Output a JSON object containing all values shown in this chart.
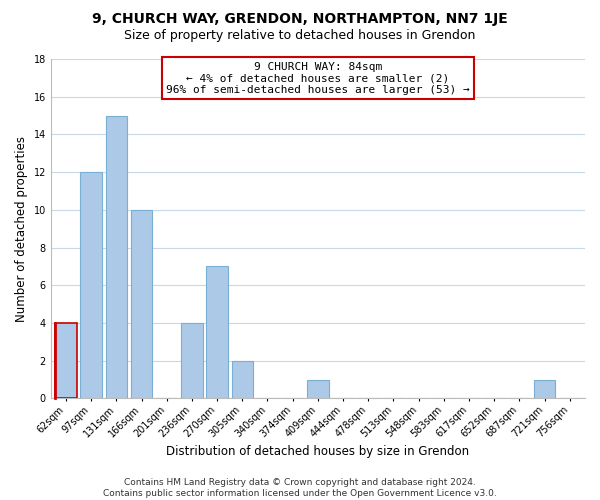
{
  "title": "9, CHURCH WAY, GRENDON, NORTHAMPTON, NN7 1JE",
  "subtitle": "Size of property relative to detached houses in Grendon",
  "xlabel": "Distribution of detached houses by size in Grendon",
  "ylabel": "Number of detached properties",
  "footer_line1": "Contains HM Land Registry data © Crown copyright and database right 2024.",
  "footer_line2": "Contains public sector information licensed under the Open Government Licence v3.0.",
  "bar_labels": [
    "62sqm",
    "97sqm",
    "131sqm",
    "166sqm",
    "201sqm",
    "236sqm",
    "270sqm",
    "305sqm",
    "340sqm",
    "374sqm",
    "409sqm",
    "444sqm",
    "478sqm",
    "513sqm",
    "548sqm",
    "583sqm",
    "617sqm",
    "652sqm",
    "687sqm",
    "721sqm",
    "756sqm"
  ],
  "bar_values": [
    4,
    12,
    15,
    10,
    0,
    4,
    7,
    2,
    0,
    0,
    1,
    0,
    0,
    0,
    0,
    0,
    0,
    0,
    0,
    1,
    0
  ],
  "bar_color": "#adc9e8",
  "bar_edge_color": "#7aafd4",
  "highlight_bar_index": 0,
  "highlight_bar_edge_color": "#cc0000",
  "annotation_box_text": "9 CHURCH WAY: 84sqm\n← 4% of detached houses are smaller (2)\n96% of semi-detached houses are larger (53) →",
  "ylim": [
    0,
    18
  ],
  "yticks": [
    0,
    2,
    4,
    6,
    8,
    10,
    12,
    14,
    16,
    18
  ],
  "grid_color": "#c8d8e8",
  "background_color": "#ffffff",
  "title_fontsize": 10,
  "subtitle_fontsize": 9,
  "axis_label_fontsize": 8.5,
  "tick_fontsize": 7,
  "annotation_fontsize": 8,
  "footer_fontsize": 6.5
}
